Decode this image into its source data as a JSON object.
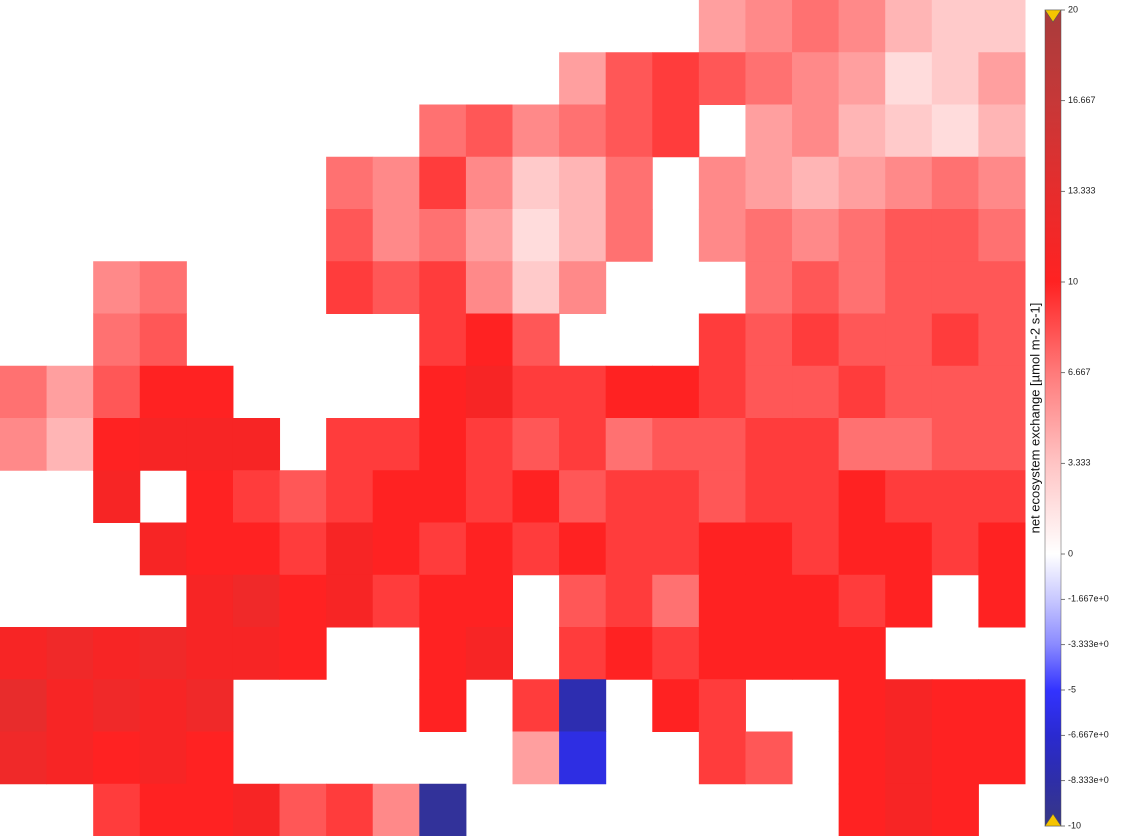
{
  "map": {
    "grid": [
      [
        null,
        null,
        null,
        null,
        null,
        null,
        null,
        null,
        null,
        null,
        null,
        null,
        null,
        null,
        null,
        5,
        6,
        7,
        6,
        4,
        3,
        3
      ],
      [
        null,
        null,
        null,
        null,
        null,
        null,
        null,
        null,
        null,
        null,
        null,
        null,
        5,
        8,
        9,
        8,
        7,
        6,
        5,
        2,
        3,
        5
      ],
      [
        null,
        null,
        null,
        null,
        null,
        null,
        null,
        null,
        null,
        7,
        8,
        6,
        7,
        8,
        9,
        null,
        5,
        6,
        4,
        3,
        2,
        4
      ],
      [
        null,
        null,
        null,
        null,
        null,
        null,
        null,
        7,
        6,
        9,
        6,
        3,
        4,
        7,
        null,
        6,
        5,
        4,
        5,
        6,
        7,
        6
      ],
      [
        null,
        null,
        null,
        null,
        null,
        null,
        null,
        8,
        6,
        7,
        5,
        2,
        4,
        7,
        null,
        6,
        7,
        6,
        7,
        8,
        8,
        7
      ],
      [
        null,
        null,
        6,
        7,
        null,
        null,
        null,
        9,
        8,
        9,
        6,
        3,
        6,
        null,
        null,
        null,
        7,
        8,
        7,
        8,
        8,
        8
      ],
      [
        null,
        null,
        7,
        8,
        null,
        null,
        null,
        null,
        null,
        9,
        10,
        8,
        null,
        null,
        null,
        9,
        8,
        9,
        8,
        8,
        9,
        8
      ],
      [
        7,
        5,
        8,
        10,
        10,
        null,
        null,
        null,
        null,
        10,
        11,
        9,
        9,
        10,
        10,
        9,
        8,
        8,
        9,
        8,
        8,
        8
      ],
      [
        6,
        4,
        10,
        11,
        11,
        11,
        null,
        9,
        9,
        10,
        9,
        8,
        9,
        7,
        8,
        8,
        9,
        9,
        7,
        7,
        8,
        8
      ],
      [
        null,
        null,
        11,
        null,
        10,
        9,
        8,
        9,
        10,
        10,
        9,
        10,
        8,
        9,
        9,
        8,
        9,
        9,
        10,
        9,
        9,
        9
      ],
      [
        null,
        null,
        null,
        11,
        10,
        10,
        9,
        11,
        10,
        9,
        10,
        9,
        10,
        9,
        9,
        10,
        10,
        9,
        10,
        10,
        9,
        10
      ],
      [
        null,
        null,
        null,
        null,
        11,
        12,
        10,
        11,
        9,
        10,
        10,
        null,
        8,
        9,
        7,
        10,
        10,
        10,
        9,
        10,
        null,
        10
      ],
      [
        11,
        12,
        11,
        12,
        11,
        11,
        10,
        null,
        null,
        10,
        11,
        null,
        9,
        10,
        9,
        10,
        10,
        10,
        10,
        null,
        null,
        null
      ],
      [
        13,
        11,
        12,
        11,
        12,
        null,
        null,
        null,
        null,
        10,
        null,
        9,
        -8,
        null,
        10,
        9,
        null,
        null,
        10,
        11,
        10,
        10
      ],
      [
        12,
        11,
        10,
        11,
        10,
        null,
        null,
        null,
        null,
        null,
        null,
        5,
        -6,
        null,
        null,
        9,
        8,
        null,
        10,
        11,
        10,
        10
      ],
      [
        null,
        null,
        9,
        10,
        10,
        11,
        8,
        9,
        6,
        -9,
        null,
        null,
        null,
        null,
        null,
        null,
        null,
        null,
        10,
        11,
        10,
        null
      ]
    ],
    "colorbar": {
      "label": "net ecosystem exchange [µmol m-2 s-1]",
      "zlim": [
        -10,
        20
      ],
      "ticks": [
        20,
        16.667,
        13.333,
        10,
        6.667,
        3.333,
        0,
        {
          "value": -1.667,
          "label": "-1.667e+0"
        },
        {
          "value": -3.333,
          "label": "-3.333e+0"
        },
        -5,
        {
          "value": -6.667,
          "label": "-6.667e+0"
        },
        {
          "value": -8.333,
          "label": "-8.333e+0"
        },
        -10
      ],
      "colors": [
        "#a83c3c",
        "#c63838",
        "#e62d2d",
        "#ff2222",
        "#ff7a7a",
        "#ffc4c4",
        "#ffffff",
        "#c8c8ff",
        "#8a8aff",
        "#3333ff",
        "#2a2ad0",
        "#2e2ea8",
        "#383884"
      ]
    }
  }
}
